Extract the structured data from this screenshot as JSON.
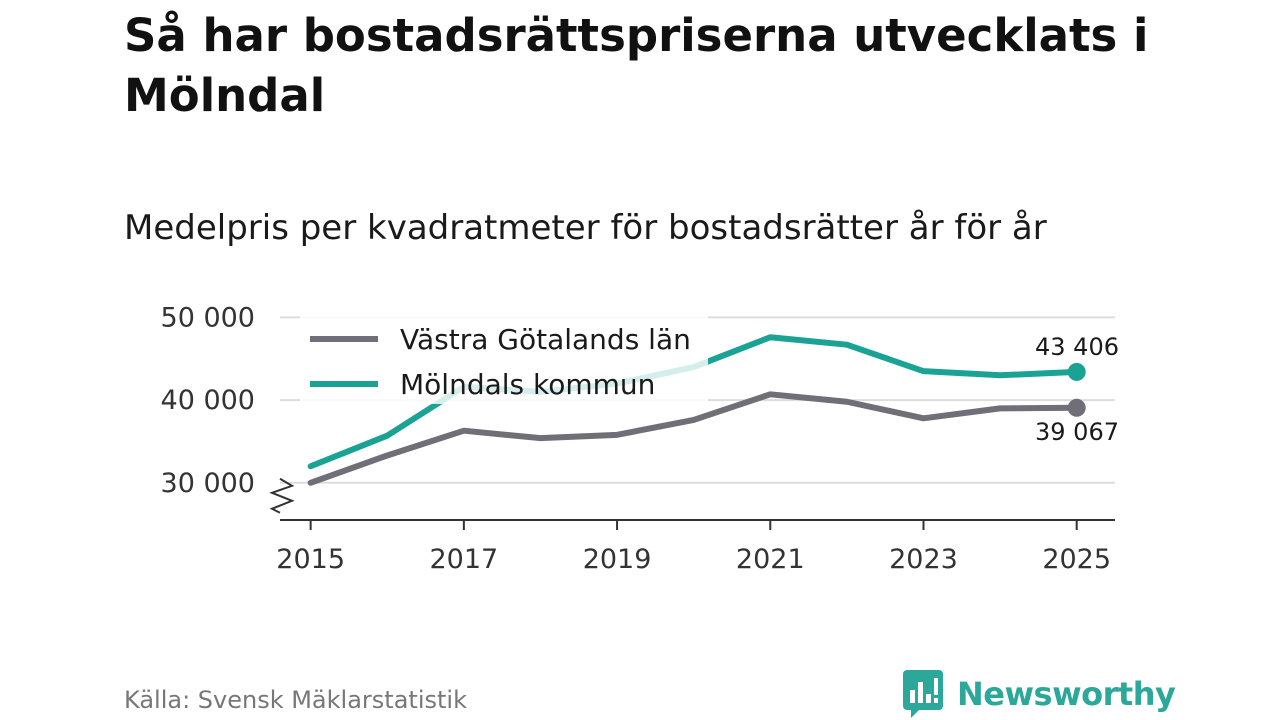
{
  "title": "Så har bostadsrättspriserna utvecklats i Mölndal",
  "subtitle": "Medelpris per kvadratmeter för bostadsrätter år för år",
  "source": "Källa: Svensk Mäklarstatistik",
  "brand": {
    "name": "Newsworthy",
    "logo_icon": "newsworthy-logo-icon",
    "color": "#2ba89a"
  },
  "chart_data": {
    "type": "line",
    "title": "Så har bostadsrättspriserna utvecklats i Mölndal",
    "subtitle": "Medelpris per kvadratmeter för bostadsrätter år för år",
    "xlabel": "",
    "ylabel": "",
    "x": [
      2015,
      2016,
      2017,
      2018,
      2019,
      2020,
      2021,
      2022,
      2023,
      2024,
      2025
    ],
    "xticks": [
      2015,
      2017,
      2019,
      2021,
      2023,
      2025
    ],
    "xtick_labels": [
      "2015",
      "2017",
      "2019",
      "2021",
      "2023",
      "2025"
    ],
    "yticks": [
      30000,
      40000,
      50000
    ],
    "ytick_labels": [
      "30 000",
      "40 000",
      "50 000"
    ],
    "ylim": [
      25500,
      51500
    ],
    "xlim": [
      2014.6,
      2025.5
    ],
    "y_axis_broken": true,
    "grid": true,
    "legend_position": "top-left",
    "series": [
      {
        "name": "Västra Götalands län",
        "color": "#706e77",
        "values": [
          30000,
          33300,
          36300,
          35400,
          35800,
          37600,
          40700,
          39800,
          37800,
          39000,
          39067
        ],
        "end_label": "39 067"
      },
      {
        "name": "Mölndals kommun",
        "color": "#1aa394",
        "values": [
          32000,
          35700,
          41600,
          41000,
          42000,
          44000,
          47600,
          46700,
          43500,
          43000,
          43406
        ],
        "end_label": "43 406"
      }
    ]
  }
}
